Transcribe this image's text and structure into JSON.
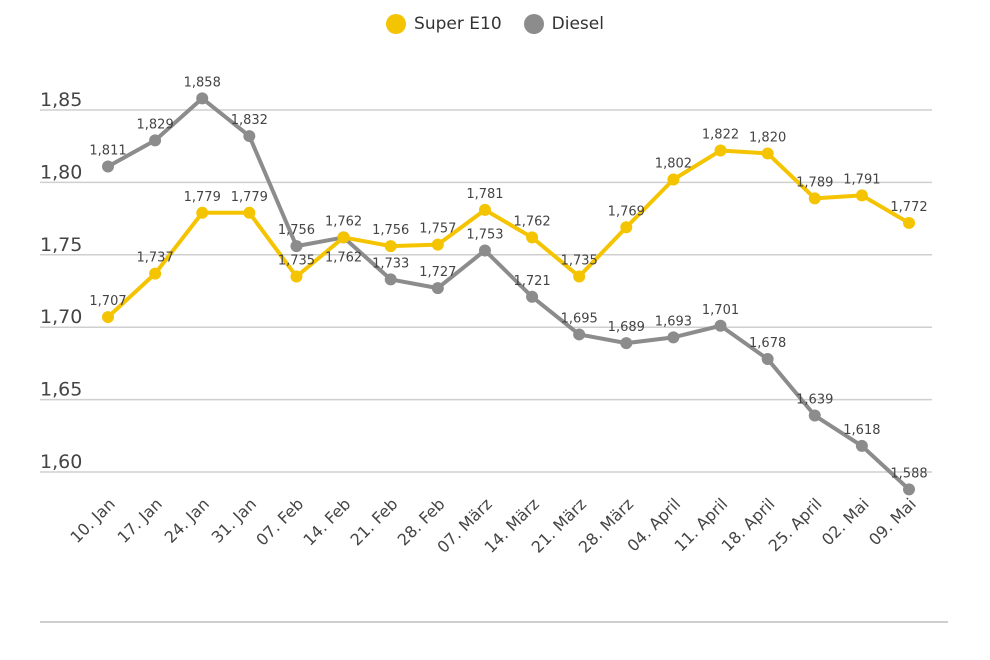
{
  "chart_data": {
    "type": "line",
    "categories": [
      "10. Jan",
      "17. Jan",
      "24. Jan",
      "31. Jan",
      "07. Feb",
      "14. Feb",
      "21. Feb",
      "28. Feb",
      "07. März",
      "14. März",
      "21. März",
      "28. März",
      "04. April",
      "11. April",
      "18. April",
      "25. April",
      "02. Mai",
      "09. Mai"
    ],
    "series": [
      {
        "name": "Super E10",
        "color": "#F5C400",
        "values": [
          1.707,
          1.737,
          1.779,
          1.779,
          1.735,
          1.762,
          1.756,
          1.757,
          1.781,
          1.762,
          1.735,
          1.769,
          1.802,
          1.822,
          1.82,
          1.789,
          1.791,
          1.772
        ]
      },
      {
        "name": "Diesel",
        "color": "#8C8C8C",
        "values": [
          1.811,
          1.829,
          1.858,
          1.832,
          1.756,
          1.762,
          1.733,
          1.727,
          1.753,
          1.721,
          1.695,
          1.689,
          1.693,
          1.701,
          1.678,
          1.639,
          1.618,
          1.588
        ]
      }
    ],
    "yticks": [
      "1,60",
      "1,65",
      "1,70",
      "1,75",
      "1,80",
      "1,85"
    ],
    "ytick_values": [
      1.6,
      1.65,
      1.7,
      1.75,
      1.8,
      1.85
    ],
    "ylim": [
      1.6,
      1.85
    ],
    "grid": true,
    "legend": "top-center",
    "decimal_separator": ","
  }
}
